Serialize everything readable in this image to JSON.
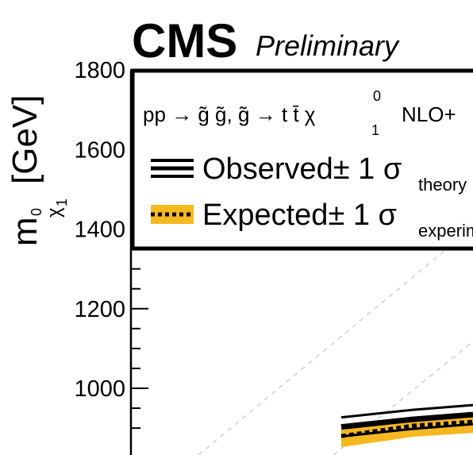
{
  "header": {
    "experiment": "CMS",
    "status": "Preliminary"
  },
  "colors": {
    "observed": "#000000",
    "expected_band": "#f5b820",
    "expected_line": "#000000",
    "diagonal": "#d0d0d0"
  },
  "chart_data": {
    "type": "line",
    "title": "CMS Preliminary",
    "ylabel": {
      "main": "m",
      "sub_chi": "χ",
      "sub_zero": "0",
      "sub_one": "1",
      "unit": "[GeV]"
    },
    "ylim": [
      900,
      1800
    ],
    "y_ticks": [
      "1800",
      "1600",
      "1400",
      "1200",
      "1000"
    ],
    "y_tick_values": [
      1800,
      1600,
      1400,
      1200,
      1000
    ],
    "y_minor_step": 50,
    "legend": {
      "position": "top-right",
      "process_text": "pp → g̃ g̃, g̃ → t t̄ χ",
      "process_sup": "0",
      "process_sub": "1",
      "process_suffix": "NLO+",
      "observed_label": "Observed± 1 σ",
      "observed_sub": "theory",
      "expected_label": "Expected± 1 σ",
      "expected_sub": "experiment"
    },
    "series": [
      {
        "name": "Observed",
        "values": [
          903,
          922,
          934
        ]
      },
      {
        "name": "Expected",
        "values": [
          880,
          906,
          916
        ]
      }
    ]
  }
}
